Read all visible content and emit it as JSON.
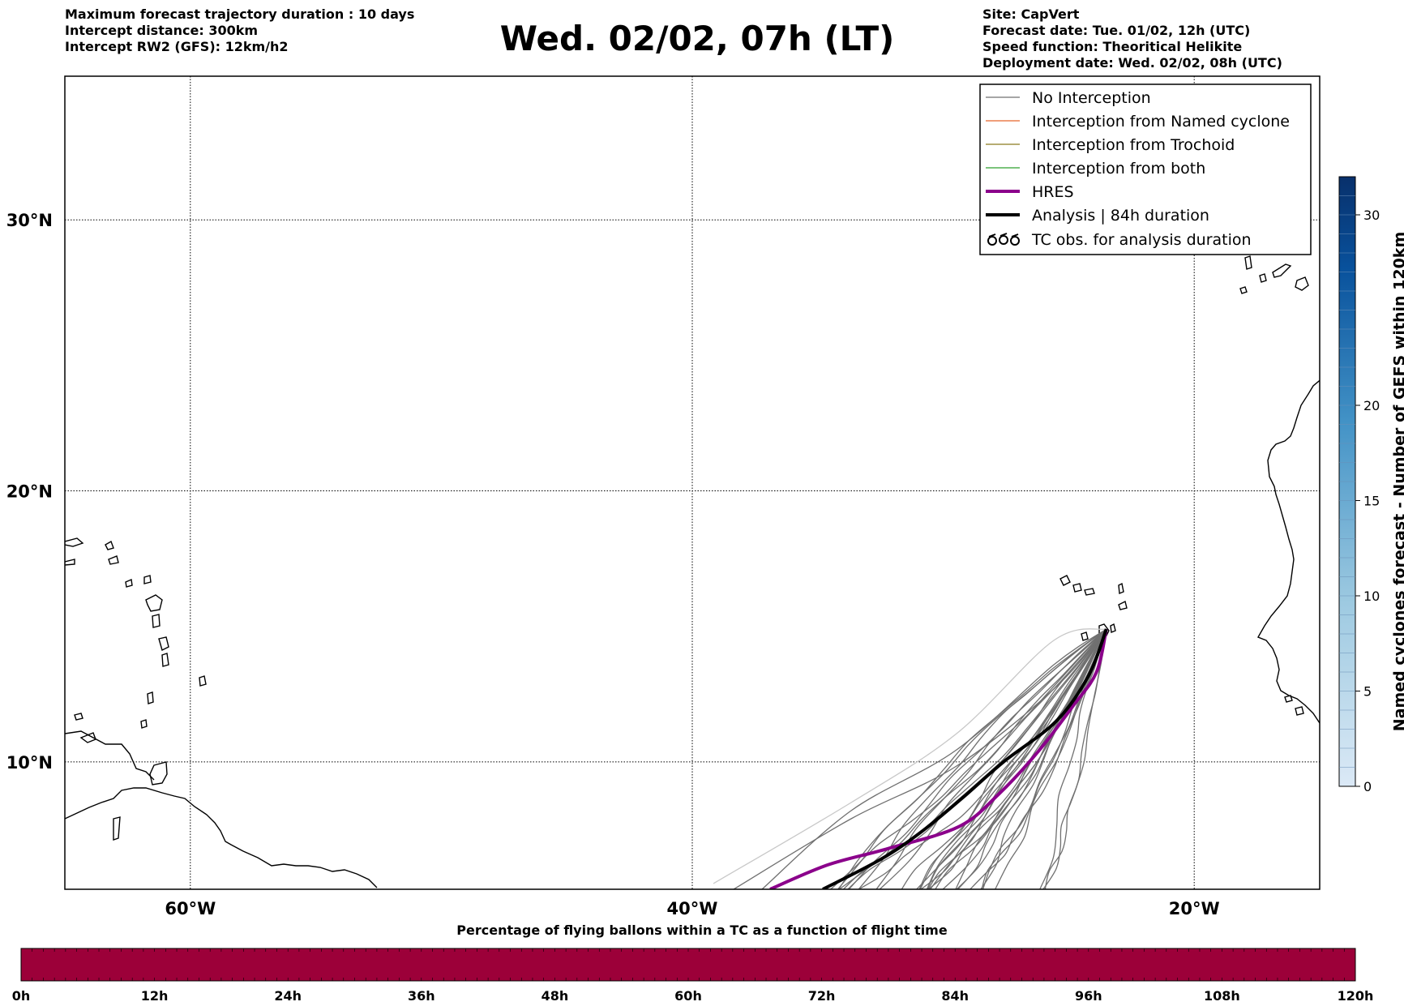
{
  "header": {
    "left_lines": [
      "Maximum forecast trajectory duration : 10 days",
      "Intercept distance: 300km",
      "Intercept RW2 (GFS):  12km/h2"
    ],
    "right_lines": [
      "Site: CapVert",
      "Forecast date: Tue. 01/02, 12h (UTC)",
      "Speed function: Theoritical Helikite",
      "Deployment date: Wed. 02/02, 08h (UTC)"
    ],
    "title": "Wed. 02/02, 07h (LT)"
  },
  "map": {
    "lon_range": [
      -65,
      -15
    ],
    "lat_range": [
      5.3,
      35.3
    ],
    "lon_ticks": [
      {
        "value": -60,
        "label": "60°W"
      },
      {
        "value": -40,
        "label": "40°W"
      },
      {
        "value": -20,
        "label": "20°W"
      }
    ],
    "lat_ticks": [
      {
        "value": 30,
        "label": "30°N"
      },
      {
        "value": 20,
        "label": "20°N"
      },
      {
        "value": 10,
        "label": "10°N"
      }
    ],
    "grid": true,
    "launch_site": {
      "name": "CapVert",
      "lon": -23.5,
      "lat": 14.9
    },
    "colors": {
      "no_interception": "#707070",
      "named_cyclone": "#e8652b",
      "trochoid": "#8a7a1e",
      "both": "#2ca02c",
      "hres": "#8b008b",
      "analysis": "#000000"
    },
    "hres_track": [
      [
        -23.5,
        14.9
      ],
      [
        -23.9,
        13.3
      ],
      [
        -24.8,
        12.1
      ],
      [
        -26.2,
        10.4
      ],
      [
        -27.8,
        8.8
      ],
      [
        -29.4,
        7.6
      ],
      [
        -32.2,
        6.8
      ],
      [
        -34.6,
        6.2
      ],
      [
        -36.9,
        5.3
      ]
    ],
    "analysis_track": [
      [
        -23.5,
        14.9
      ],
      [
        -24.2,
        13.2
      ],
      [
        -25.5,
        11.5
      ],
      [
        -27.6,
        10.0
      ],
      [
        -29.2,
        8.7
      ],
      [
        -30.9,
        7.4
      ],
      [
        -32.5,
        6.4
      ],
      [
        -34.8,
        5.3
      ]
    ]
  },
  "legend": {
    "items": [
      {
        "label": "No Interception",
        "style": "thin-gray"
      },
      {
        "label": "Interception from Named cyclone",
        "style": "thin-orange"
      },
      {
        "label": "Interception from Trochoid",
        "style": "thin-olive"
      },
      {
        "label": "Interception from both",
        "style": "thin-green"
      },
      {
        "label": "HRES",
        "style": "thick-purple"
      },
      {
        "label": "Analysis | 84h duration",
        "style": "thick-black"
      },
      {
        "label": "TC obs. for analysis duration",
        "style": "tc-symbols"
      }
    ]
  },
  "colorbar_right": {
    "label": "Named cyclones forecast - Number of GEFS within 120km",
    "range": [
      0,
      32
    ],
    "ticks": [
      0,
      5,
      10,
      15,
      20,
      30
    ],
    "color_low": "#dbe9f6",
    "color_high": "#08306b"
  },
  "bottom_bar": {
    "title": "Percentage of flying ballons within a TC as a function of flight time",
    "ticks": [
      "0h",
      "12h",
      "24h",
      "36h",
      "48h",
      "60h",
      "72h",
      "84h",
      "96h",
      "108h",
      "120h"
    ],
    "fill_color": "#9c0039"
  }
}
